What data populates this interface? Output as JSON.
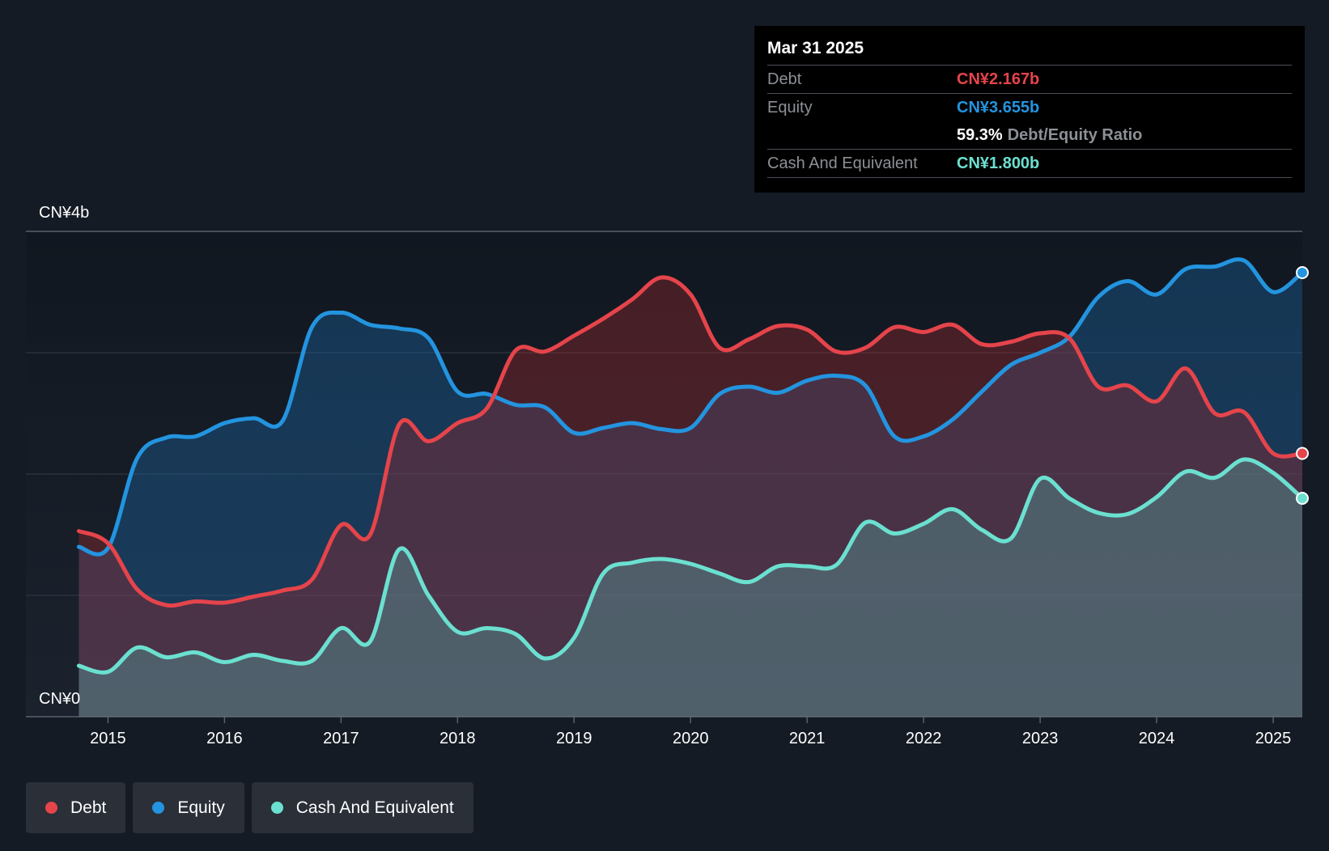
{
  "tooltip": {
    "date": "Mar 31 2025",
    "rows": [
      {
        "label": "Debt",
        "value": "CN¥2.167b",
        "color": "#e5444b"
      },
      {
        "label": "Equity",
        "value": "CN¥3.655b",
        "color": "#2394df"
      },
      {
        "ratio_value": "59.3%",
        "ratio_label": "Debt/Equity Ratio"
      },
      {
        "label": "Cash And Equivalent",
        "value": "CN¥1.800b",
        "color": "#6be0d0"
      }
    ]
  },
  "legend": [
    {
      "label": "Debt",
      "color": "#e5444b"
    },
    {
      "label": "Equity",
      "color": "#2394df"
    },
    {
      "label": "Cash And Equivalent",
      "color": "#6be0d0"
    }
  ],
  "chart_data": {
    "type": "area",
    "y_labels": [
      "CN¥4b",
      "CN¥0"
    ],
    "ylim": [
      0,
      4
    ],
    "xlim": [
      2014.74,
      2025.25
    ],
    "x_ticks": [
      "2015",
      "2016",
      "2017",
      "2018",
      "2019",
      "2020",
      "2021",
      "2022",
      "2023",
      "2024",
      "2025"
    ],
    "grid": true,
    "series": [
      {
        "name": "Debt",
        "color": "#e5444b",
        "points": [
          [
            2014.75,
            1.53
          ],
          [
            2015.0,
            1.43
          ],
          [
            2015.25,
            1.05
          ],
          [
            2015.5,
            0.92
          ],
          [
            2015.75,
            0.95
          ],
          [
            2016.0,
            0.94
          ],
          [
            2016.25,
            0.99
          ],
          [
            2016.5,
            1.04
          ],
          [
            2016.75,
            1.13
          ],
          [
            2017.0,
            1.58
          ],
          [
            2017.25,
            1.5
          ],
          [
            2017.5,
            2.41
          ],
          [
            2017.75,
            2.27
          ],
          [
            2018.0,
            2.42
          ],
          [
            2018.25,
            2.54
          ],
          [
            2018.5,
            3.02
          ],
          [
            2018.75,
            3.01
          ],
          [
            2019.0,
            3.14
          ],
          [
            2019.25,
            3.28
          ],
          [
            2019.5,
            3.44
          ],
          [
            2019.75,
            3.62
          ],
          [
            2020.0,
            3.48
          ],
          [
            2020.25,
            3.04
          ],
          [
            2020.5,
            3.11
          ],
          [
            2020.75,
            3.22
          ],
          [
            2021.0,
            3.19
          ],
          [
            2021.25,
            3.01
          ],
          [
            2021.5,
            3.04
          ],
          [
            2021.75,
            3.21
          ],
          [
            2022.0,
            3.17
          ],
          [
            2022.25,
            3.23
          ],
          [
            2022.5,
            3.07
          ],
          [
            2022.75,
            3.09
          ],
          [
            2023.0,
            3.16
          ],
          [
            2023.25,
            3.12
          ],
          [
            2023.5,
            2.72
          ],
          [
            2023.75,
            2.73
          ],
          [
            2024.0,
            2.6
          ],
          [
            2024.25,
            2.87
          ],
          [
            2024.5,
            2.5
          ],
          [
            2024.75,
            2.51
          ],
          [
            2025.0,
            2.17
          ],
          [
            2025.25,
            2.17
          ]
        ]
      },
      {
        "name": "Equity",
        "color": "#2394df",
        "points": [
          [
            2014.75,
            1.4
          ],
          [
            2015.0,
            1.39
          ],
          [
            2015.25,
            2.13
          ],
          [
            2015.5,
            2.3
          ],
          [
            2015.75,
            2.31
          ],
          [
            2016.0,
            2.42
          ],
          [
            2016.25,
            2.46
          ],
          [
            2016.5,
            2.44
          ],
          [
            2016.75,
            3.21
          ],
          [
            2017.0,
            3.33
          ],
          [
            2017.25,
            3.23
          ],
          [
            2017.5,
            3.2
          ],
          [
            2017.75,
            3.12
          ],
          [
            2018.0,
            2.68
          ],
          [
            2018.25,
            2.66
          ],
          [
            2018.5,
            2.57
          ],
          [
            2018.75,
            2.55
          ],
          [
            2019.0,
            2.34
          ],
          [
            2019.25,
            2.38
          ],
          [
            2019.5,
            2.42
          ],
          [
            2019.75,
            2.37
          ],
          [
            2020.0,
            2.38
          ],
          [
            2020.25,
            2.66
          ],
          [
            2020.5,
            2.72
          ],
          [
            2020.75,
            2.67
          ],
          [
            2021.0,
            2.77
          ],
          [
            2021.25,
            2.81
          ],
          [
            2021.5,
            2.73
          ],
          [
            2021.75,
            2.31
          ],
          [
            2022.0,
            2.31
          ],
          [
            2022.25,
            2.45
          ],
          [
            2022.5,
            2.68
          ],
          [
            2022.75,
            2.9
          ],
          [
            2023.0,
            3.0
          ],
          [
            2023.25,
            3.13
          ],
          [
            2023.5,
            3.46
          ],
          [
            2023.75,
            3.59
          ],
          [
            2024.0,
            3.48
          ],
          [
            2024.25,
            3.69
          ],
          [
            2024.5,
            3.71
          ],
          [
            2024.75,
            3.76
          ],
          [
            2025.0,
            3.5
          ],
          [
            2025.25,
            3.66
          ]
        ]
      },
      {
        "name": "Cash And Equivalent",
        "color": "#6be0d0",
        "points": [
          [
            2014.75,
            0.42
          ],
          [
            2015.0,
            0.37
          ],
          [
            2015.25,
            0.57
          ],
          [
            2015.5,
            0.49
          ],
          [
            2015.75,
            0.53
          ],
          [
            2016.0,
            0.45
          ],
          [
            2016.25,
            0.51
          ],
          [
            2016.5,
            0.46
          ],
          [
            2016.75,
            0.46
          ],
          [
            2017.0,
            0.73
          ],
          [
            2017.25,
            0.62
          ],
          [
            2017.5,
            1.38
          ],
          [
            2017.75,
            1.0
          ],
          [
            2018.0,
            0.7
          ],
          [
            2018.25,
            0.73
          ],
          [
            2018.5,
            0.68
          ],
          [
            2018.75,
            0.48
          ],
          [
            2019.0,
            0.65
          ],
          [
            2019.25,
            1.18
          ],
          [
            2019.5,
            1.27
          ],
          [
            2019.75,
            1.3
          ],
          [
            2020.0,
            1.26
          ],
          [
            2020.25,
            1.18
          ],
          [
            2020.5,
            1.11
          ],
          [
            2020.75,
            1.24
          ],
          [
            2021.0,
            1.24
          ],
          [
            2021.25,
            1.25
          ],
          [
            2021.5,
            1.6
          ],
          [
            2021.75,
            1.51
          ],
          [
            2022.0,
            1.59
          ],
          [
            2022.25,
            1.71
          ],
          [
            2022.5,
            1.54
          ],
          [
            2022.75,
            1.47
          ],
          [
            2023.0,
            1.96
          ],
          [
            2023.25,
            1.8
          ],
          [
            2023.5,
            1.68
          ],
          [
            2023.75,
            1.67
          ],
          [
            2024.0,
            1.81
          ],
          [
            2024.25,
            2.02
          ],
          [
            2024.5,
            1.97
          ],
          [
            2024.75,
            2.12
          ],
          [
            2025.0,
            2.01
          ],
          [
            2025.25,
            1.8
          ]
        ]
      }
    ]
  }
}
